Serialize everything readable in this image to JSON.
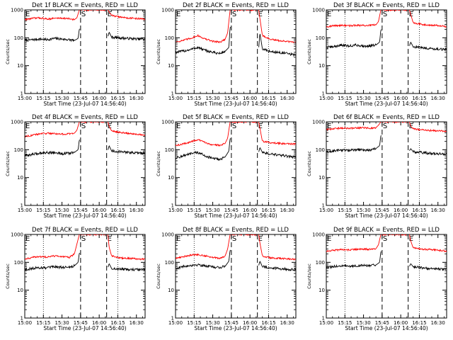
{
  "figure": {
    "background": "#ffffff",
    "colors": {
      "events": "#000000",
      "lld": "#ff0000",
      "axes": "#000000"
    }
  },
  "chart_data": {
    "type": "line",
    "panel_layout": "3x3 grid",
    "shared": {
      "xlabel": "Start Time (23-Jul-07 14:56:40)",
      "ylabel": "Counts/sec",
      "xtick_labels": [
        "15:00",
        "15:15",
        "15:30",
        "15:45",
        "16:00",
        "16:15",
        "16:30"
      ],
      "xtick_minutes": [
        0,
        15,
        30,
        45,
        60,
        75,
        90
      ],
      "xlim_minutes_after_15_00": [
        0,
        97
      ],
      "yscale": "log",
      "ylim": [
        1,
        1000
      ],
      "ytick_labels": [
        "1",
        "10",
        "100",
        "1000"
      ],
      "ytick_values": [
        1,
        10,
        100,
        1000
      ],
      "markers": [
        {
          "label": "E",
          "minute": 0,
          "style": "solid"
        },
        {
          "label": "S",
          "minute": 45,
          "style": "dashed"
        },
        {
          "label": "E",
          "minute": 66,
          "style": "dashed"
        }
      ],
      "dotted_lines_minutes": [
        15,
        75
      ],
      "series_names": [
        "Events",
        "LLD"
      ]
    },
    "panels": [
      {
        "title": "Det 1f BLACK = Events, RED = LLD",
        "series": [
          {
            "name": "Events",
            "color": "#000000",
            "x": [
              0,
              6,
              12,
              18,
              24,
              30,
              36,
              40,
              43,
              44,
              67,
              68,
              70,
              76,
              82,
              88,
              94,
              97
            ],
            "y": [
              80,
              85,
              90,
              85,
              95,
              90,
              85,
              80,
              95,
              210,
              110,
              160,
              105,
              100,
              95,
              92,
              90,
              90
            ]
          },
          {
            "name": "LLD",
            "color": "#ff0000",
            "x": [
              0,
              6,
              12,
              18,
              24,
              30,
              36,
              40,
              42,
              44,
              66,
              67,
              68,
              70,
              76,
              82,
              88,
              94,
              97
            ],
            "y": [
              450,
              500,
              520,
              470,
              500,
              510,
              480,
              450,
              520,
              1000,
              1000,
              1000,
              850,
              630,
              560,
              520,
              500,
              480,
              460
            ]
          }
        ]
      },
      {
        "title": "Det 2f BLACK = Events, RED = LLD",
        "series": [
          {
            "name": "Events",
            "color": "#000000",
            "x": [
              0,
              6,
              12,
              18,
              24,
              30,
              36,
              40,
              43,
              44,
              67,
              68,
              70,
              76,
              82,
              88,
              94,
              97
            ],
            "y": [
              30,
              33,
              38,
              45,
              35,
              30,
              27,
              33,
              45,
              250,
              40,
              150,
              40,
              32,
              30,
              28,
              25,
              25
            ]
          },
          {
            "name": "LLD",
            "color": "#ff0000",
            "x": [
              0,
              6,
              12,
              18,
              24,
              30,
              36,
              40,
              42,
              44,
              66,
              67,
              68,
              70,
              76,
              82,
              88,
              94,
              97
            ],
            "y": [
              70,
              80,
              95,
              120,
              90,
              75,
              70,
              90,
              150,
              1000,
              1000,
              1000,
              500,
              120,
              90,
              80,
              75,
              70,
              70
            ]
          }
        ]
      },
      {
        "title": "Det 3f BLACK = Events, RED = LLD",
        "series": [
          {
            "name": "Events",
            "color": "#000000",
            "x": [
              0,
              6,
              12,
              18,
              24,
              30,
              36,
              40,
              43,
              44,
              67,
              68,
              70,
              76,
              82,
              88,
              94,
              97
            ],
            "y": [
              45,
              48,
              55,
              50,
              55,
              50,
              52,
              55,
              70,
              200,
              50,
              70,
              48,
              45,
              42,
              40,
              38,
              38
            ]
          },
          {
            "name": "LLD",
            "color": "#ff0000",
            "x": [
              0,
              6,
              12,
              18,
              24,
              30,
              36,
              40,
              42,
              44,
              66,
              67,
              68,
              70,
              76,
              82,
              88,
              94,
              97
            ],
            "y": [
              250,
              270,
              280,
              270,
              280,
              275,
              280,
              290,
              380,
              1000,
              1000,
              1000,
              700,
              350,
              310,
              290,
              280,
              260,
              250
            ]
          }
        ]
      },
      {
        "title": "Det 4f BLACK = Events, RED = LLD",
        "series": [
          {
            "name": "Events",
            "color": "#000000",
            "x": [
              0,
              6,
              12,
              18,
              24,
              30,
              36,
              40,
              43,
              44,
              67,
              68,
              70,
              76,
              82,
              88,
              94,
              97
            ],
            "y": [
              60,
              68,
              75,
              80,
              78,
              72,
              75,
              80,
              100,
              230,
              95,
              140,
              90,
              85,
              80,
              78,
              75,
              73
            ]
          },
          {
            "name": "LLD",
            "color": "#ff0000",
            "x": [
              0,
              6,
              12,
              18,
              24,
              30,
              36,
              40,
              42,
              44,
              66,
              67,
              68,
              70,
              76,
              82,
              88,
              94,
              97
            ],
            "y": [
              300,
              330,
              370,
              390,
              380,
              360,
              370,
              390,
              500,
              1000,
              1000,
              1000,
              700,
              470,
              420,
              390,
              370,
              350,
              340
            ]
          }
        ]
      },
      {
        "title": "Det 5f BLACK = Events, RED = LLD",
        "series": [
          {
            "name": "Events",
            "color": "#000000",
            "x": [
              0,
              6,
              12,
              18,
              24,
              30,
              36,
              40,
              43,
              44,
              67,
              68,
              70,
              76,
              82,
              88,
              94,
              97
            ],
            "y": [
              50,
              60,
              70,
              80,
              60,
              48,
              45,
              55,
              90,
              260,
              80,
              120,
              80,
              70,
              65,
              60,
              55,
              55
            ]
          },
          {
            "name": "LLD",
            "color": "#ff0000",
            "x": [
              0,
              6,
              12,
              18,
              24,
              30,
              36,
              40,
              42,
              44,
              66,
              67,
              68,
              70,
              76,
              82,
              88,
              94,
              97
            ],
            "y": [
              140,
              160,
              190,
              230,
              180,
              150,
              145,
              170,
              260,
              1000,
              1000,
              1000,
              600,
              200,
              180,
              170,
              165,
              160,
              160
            ]
          }
        ]
      },
      {
        "title": "Det 6f BLACK = Events, RED = LLD",
        "series": [
          {
            "name": "Events",
            "color": "#000000",
            "x": [
              0,
              6,
              12,
              18,
              24,
              30,
              36,
              40,
              43,
              44,
              67,
              68,
              70,
              76,
              82,
              88,
              94,
              97
            ],
            "y": [
              80,
              90,
              98,
              95,
              98,
              100,
              95,
              110,
              140,
              330,
              90,
              110,
              85,
              80,
              75,
              72,
              70,
              70
            ]
          },
          {
            "name": "LLD",
            "color": "#ff0000",
            "x": [
              0,
              6,
              12,
              18,
              24,
              30,
              36,
              40,
              42,
              44,
              66,
              67,
              68,
              70,
              76,
              82,
              88,
              94,
              97
            ],
            "y": [
              520,
              560,
              600,
              580,
              600,
              610,
              590,
              620,
              750,
              1000,
              1000,
              1000,
              700,
              560,
              520,
              500,
              480,
              460,
              450
            ]
          }
        ]
      },
      {
        "title": "Det 7f BLACK = Events, RED = LLD",
        "series": [
          {
            "name": "Events",
            "color": "#000000",
            "x": [
              0,
              6,
              12,
              18,
              24,
              30,
              36,
              40,
              43,
              44,
              67,
              68,
              70,
              76,
              82,
              88,
              94,
              97
            ],
            "y": [
              55,
              60,
              65,
              62,
              70,
              65,
              68,
              75,
              100,
              220,
              65,
              90,
              60,
              58,
              55,
              55,
              55,
              55
            ]
          },
          {
            "name": "LLD",
            "color": "#ff0000",
            "x": [
              0,
              6,
              12,
              18,
              24,
              30,
              36,
              40,
              42,
              44,
              66,
              67,
              68,
              70,
              76,
              82,
              88,
              94,
              97
            ],
            "y": [
              130,
              150,
              160,
              155,
              170,
              160,
              150,
              200,
              450,
              1000,
              1000,
              1000,
              350,
              170,
              145,
              140,
              135,
              130,
              130
            ]
          }
        ]
      },
      {
        "title": "Det 8f BLACK = Events, RED = LLD",
        "series": [
          {
            "name": "Events",
            "color": "#000000",
            "x": [
              0,
              6,
              12,
              18,
              24,
              30,
              36,
              40,
              43,
              44,
              67,
              68,
              70,
              76,
              82,
              88,
              94,
              97
            ],
            "y": [
              60,
              70,
              78,
              82,
              75,
              68,
              65,
              72,
              110,
              280,
              75,
              110,
              70,
              65,
              60,
              58,
              55,
              55
            ]
          },
          {
            "name": "LLD",
            "color": "#ff0000",
            "x": [
              0,
              6,
              12,
              18,
              24,
              30,
              36,
              40,
              42,
              44,
              66,
              67,
              68,
              70,
              76,
              82,
              88,
              94,
              97
            ],
            "y": [
              140,
              160,
              180,
              190,
              170,
              150,
              140,
              170,
              300,
              1000,
              1000,
              1000,
              500,
              170,
              145,
              140,
              135,
              130,
              130
            ]
          }
        ]
      },
      {
        "title": "Det 9f BLACK = Events, RED = LLD",
        "series": [
          {
            "name": "Events",
            "color": "#000000",
            "x": [
              0,
              6,
              12,
              18,
              24,
              30,
              36,
              40,
              43,
              44,
              67,
              68,
              70,
              76,
              82,
              88,
              94,
              97
            ],
            "y": [
              65,
              70,
              75,
              72,
              75,
              78,
              75,
              80,
              100,
              250,
              70,
              90,
              70,
              65,
              60,
              58,
              55,
              55
            ]
          },
          {
            "name": "LLD",
            "color": "#ff0000",
            "x": [
              0,
              6,
              12,
              18,
              24,
              30,
              36,
              40,
              42,
              44,
              66,
              67,
              68,
              70,
              76,
              82,
              88,
              94,
              97
            ],
            "y": [
              250,
              270,
              285,
              280,
              290,
              300,
              290,
              310,
              420,
              1000,
              1000,
              1000,
              600,
              330,
              300,
              290,
              280,
              260,
              250
            ]
          }
        ]
      }
    ]
  }
}
